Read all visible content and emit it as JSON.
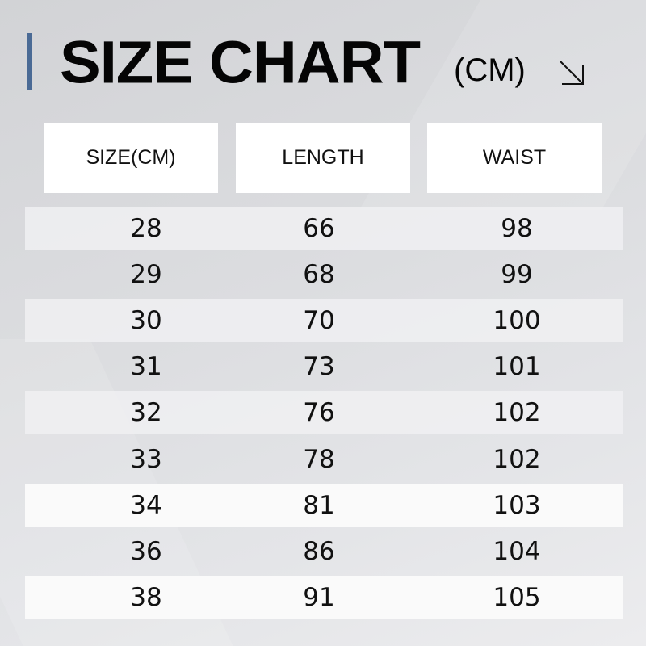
{
  "title": "SIZE CHART",
  "unit": "(CM)",
  "icons": {
    "arrow": "arrow-down-right-icon"
  },
  "colors": {
    "accent": "#4a6a95",
    "header_bg": "#ffffff",
    "text": "#111111"
  },
  "table": {
    "headers": [
      "SIZE(CM)",
      "LENGTH",
      "WAIST"
    ],
    "rows": [
      [
        "28",
        "66",
        "98"
      ],
      [
        "29",
        "68",
        "99"
      ],
      [
        "30",
        "70",
        "100"
      ],
      [
        "31",
        "73",
        "101"
      ],
      [
        "32",
        "76",
        "102"
      ],
      [
        "33",
        "78",
        "102"
      ],
      [
        "34",
        "81",
        "103"
      ],
      [
        "36",
        "86",
        "104"
      ],
      [
        "38",
        "91",
        "105"
      ]
    ]
  }
}
